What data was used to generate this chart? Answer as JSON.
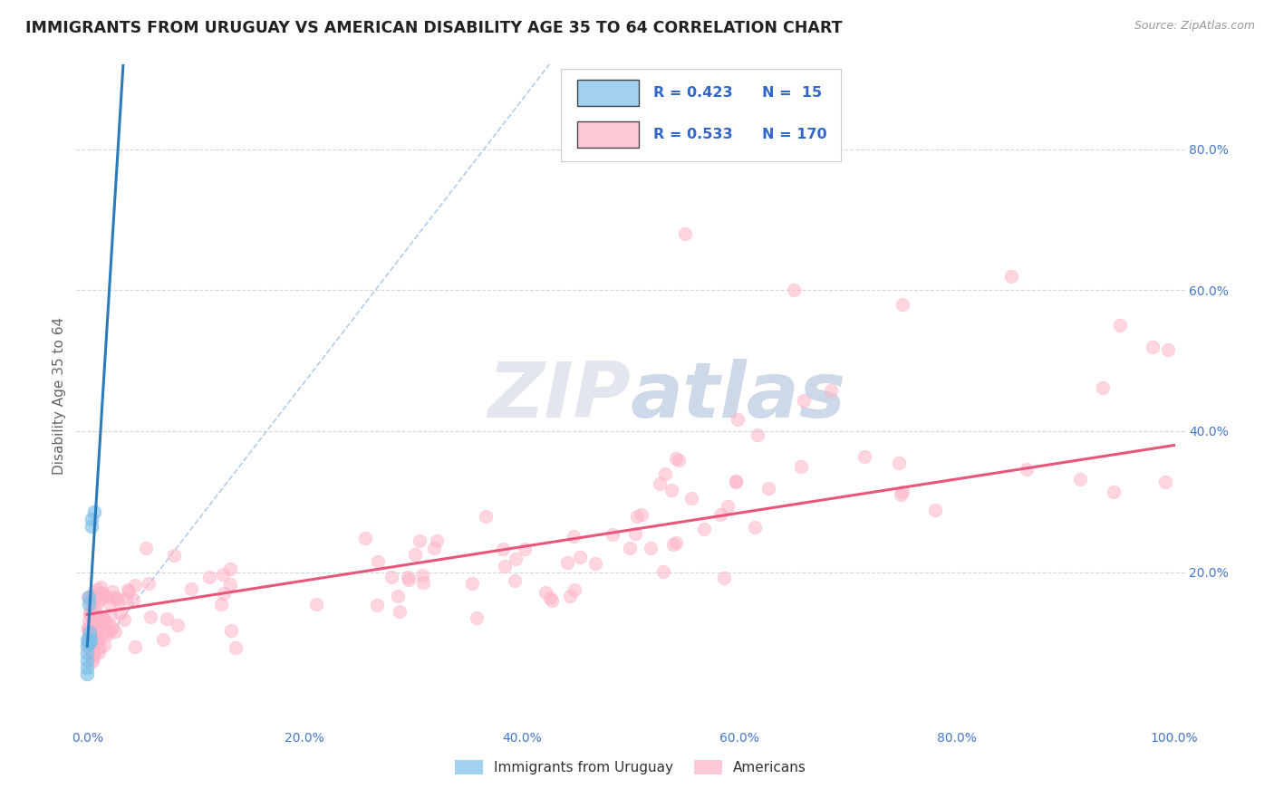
{
  "title": "IMMIGRANTS FROM URUGUAY VS AMERICAN DISABILITY AGE 35 TO 64 CORRELATION CHART",
  "source_text": "Source: ZipAtlas.com",
  "ylabel": "Disability Age 35 to 64",
  "xlim": [
    -0.01,
    1.01
  ],
  "ylim": [
    -0.02,
    0.92
  ],
  "xticks": [
    0.0,
    0.2,
    0.4,
    0.6,
    0.8,
    1.0
  ],
  "xticklabels": [
    "0.0%",
    "20.0%",
    "40.0%",
    "60.0%",
    "80.0%",
    "100.0%"
  ],
  "yticks": [
    0.0,
    0.2,
    0.4,
    0.6,
    0.8
  ],
  "yticklabels": [
    "",
    "20.0%",
    "40.0%",
    "60.0%",
    "80.0%"
  ],
  "legend_r1": "R = 0.423",
  "legend_n1": "N =  15",
  "legend_r2": "R = 0.533",
  "legend_n2": "N = 170",
  "blue_scatter_color": "#7bbfe8",
  "pink_scatter_color": "#ffb3c8",
  "blue_line_color": "#2b7bba",
  "pink_line_color": "#e8567a",
  "diag_line_color": "#aac8e8",
  "watermark_zip_color": "#b0b8d0",
  "watermark_atlas_color": "#7090c0",
  "background_color": "#ffffff",
  "grid_color": "#d0d8e0",
  "title_color": "#222222",
  "tick_label_color": "#4477cc",
  "ylabel_color": "#666666",
  "source_color": "#999999",
  "legend_text_color": "#3366cc"
}
